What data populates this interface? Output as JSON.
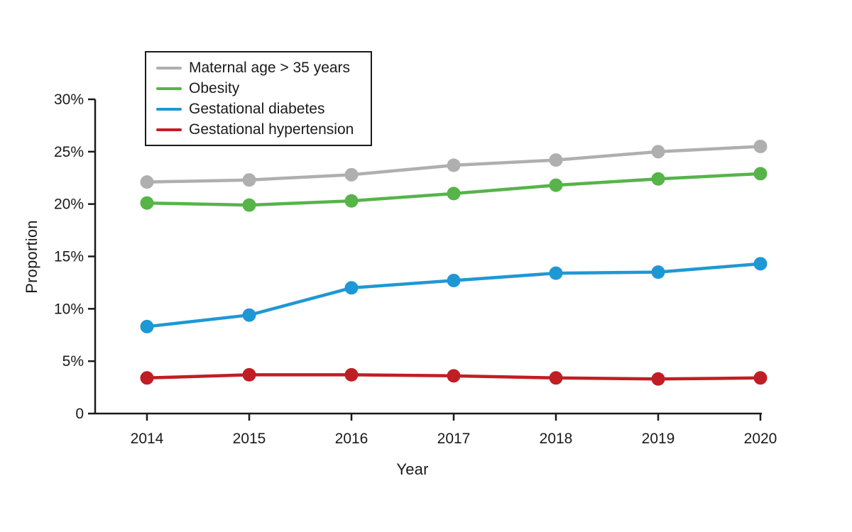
{
  "chart_data": {
    "type": "line",
    "title": "",
    "xlabel": "Year",
    "ylabel": "Proportion",
    "categories": [
      "2014",
      "2015",
      "2016",
      "2017",
      "2018",
      "2019",
      "2020"
    ],
    "y_axis": {
      "min": 0,
      "max": 30,
      "tick_values": [
        0,
        5,
        10,
        15,
        20,
        25,
        30
      ],
      "tick_labels": [
        "0",
        "5%",
        "10%",
        "15%",
        "20%",
        "25%",
        "30%"
      ]
    },
    "grid": false,
    "legend_position": "top-left-inside",
    "series": [
      {
        "name": "Maternal age > 35 years",
        "color": "#AFAFAF",
        "values": [
          22.1,
          22.3,
          22.8,
          23.7,
          24.2,
          25.0,
          25.5
        ]
      },
      {
        "name": "Obesity",
        "color": "#56B449",
        "values": [
          20.1,
          19.9,
          20.3,
          21.0,
          21.8,
          22.4,
          22.9
        ]
      },
      {
        "name": "Gestational diabetes",
        "color": "#1E98D5",
        "values": [
          8.3,
          9.4,
          12.0,
          12.7,
          13.4,
          13.5,
          14.3
        ]
      },
      {
        "name": "Gestational hypertension",
        "color": "#C01E24",
        "values": [
          3.4,
          3.7,
          3.7,
          3.6,
          3.4,
          3.3,
          3.4
        ]
      }
    ]
  },
  "colors": {
    "axis": "#1a1a1a",
    "tick_text": "#1a1a1a",
    "background": "#ffffff",
    "legend_border": "#1a1a1a"
  }
}
